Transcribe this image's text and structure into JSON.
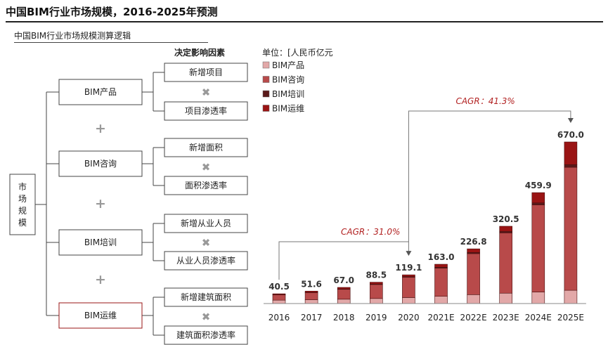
{
  "header": {
    "title": "中国BIM行业市场规模，2016-2025年预测",
    "subtitle": "中国BIM行业市场规模测算逻辑"
  },
  "logic": {
    "factors_header": "决定影响因素",
    "root": "市场规模",
    "plus": "+",
    "times": "✖",
    "groups": [
      {
        "label": "BIM产品",
        "factors": [
          "新增项目",
          "项目渗透率"
        ]
      },
      {
        "label": "BIM咨询",
        "factors": [
          "新增面积",
          "面积渗透率"
        ]
      },
      {
        "label": "BIM培训",
        "factors": [
          "新增从业人员",
          "从业人员渗透率"
        ]
      },
      {
        "label": "BIM运维",
        "factors": [
          "新增建筑面积",
          "建筑面积渗透率"
        ]
      }
    ]
  },
  "chart_data": {
    "type": "bar",
    "stacked": true,
    "unit": "单位：[人民币亿元",
    "categories": [
      "2016",
      "2017",
      "2018",
      "2019",
      "2020",
      "2021E",
      "2022E",
      "2023E",
      "2024E",
      "2025E"
    ],
    "totals": [
      40.5,
      51.6,
      67.0,
      88.5,
      119.1,
      163.0,
      226.8,
      320.5,
      459.9,
      670.0
    ],
    "total_labels": [
      "40.5",
      "51.6",
      "67.0",
      "88.5",
      "119.1",
      "163.0",
      "226.8",
      "320.5",
      "459.9",
      "670.0"
    ],
    "series": [
      {
        "name": "BIM产品",
        "color": "#e2a8a8",
        "values": [
          14,
          16,
          18,
          21,
          25,
          30,
          37,
          43,
          48,
          55
        ]
      },
      {
        "name": "BIM咨询",
        "color": "#b84a4a",
        "values": [
          22,
          29,
          41,
          58,
          84,
          117,
          170,
          250,
          361,
          510
        ]
      },
      {
        "name": "BIM培训",
        "color": "#5a1a1a",
        "values": [
          0.9,
          1.2,
          1.6,
          2.1,
          2.8,
          3.7,
          4.8,
          6.4,
          8.4,
          11
        ]
      },
      {
        "name": "BIM运维",
        "color": "#9a1414",
        "values": [
          3.6,
          5.4,
          6.4,
          7.4,
          7.3,
          12.3,
          15.0,
          21.1,
          42.5,
          94.0
        ]
      }
    ],
    "ylim": [
      0,
      700
    ],
    "legend_position": "top-left",
    "annotations": [
      {
        "text": "CAGR：31.0%",
        "from": "2016",
        "to": "2020"
      },
      {
        "text": "CAGR：41.3%",
        "from": "2020",
        "to": "2025E"
      }
    ]
  }
}
